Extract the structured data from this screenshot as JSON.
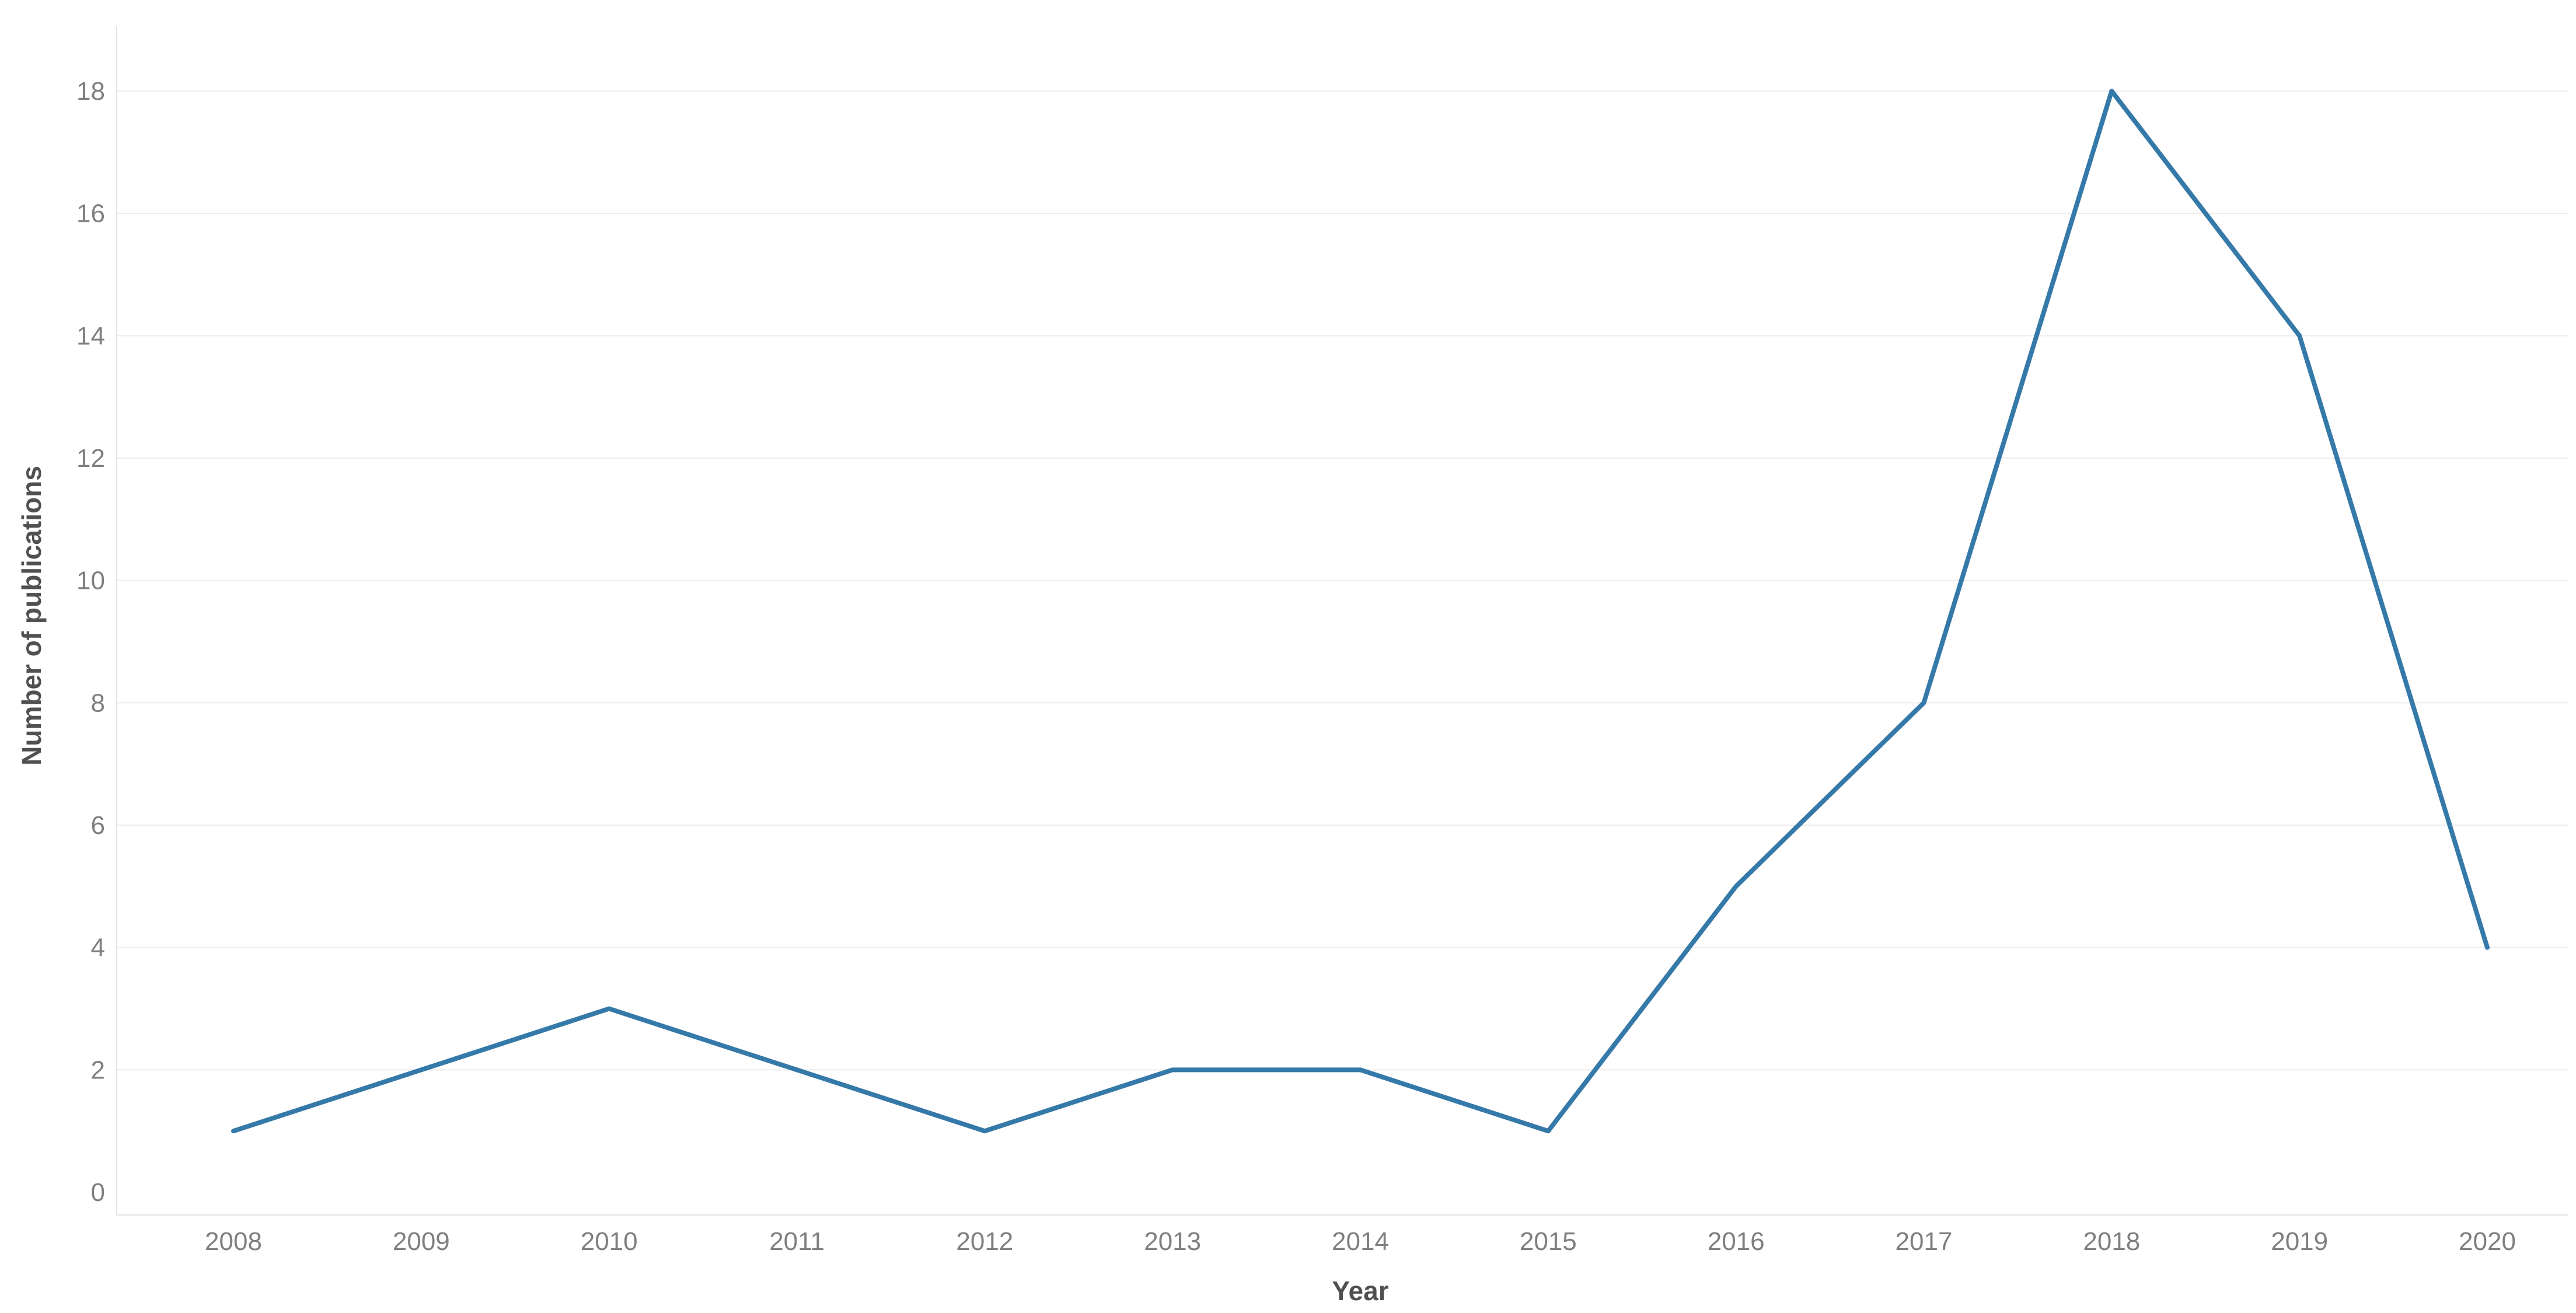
{
  "chart_data": {
    "type": "line",
    "xlabel": "Year",
    "ylabel": "Number of publications",
    "categories": [
      "2008",
      "2009",
      "2010",
      "2011",
      "2012",
      "2013",
      "2014",
      "2015",
      "2016",
      "2017",
      "2018",
      "2019",
      "2020"
    ],
    "series": [
      {
        "values": [
          1,
          2,
          3,
          2,
          1,
          2,
          2,
          1,
          5,
          8,
          18,
          14,
          4
        ]
      }
    ],
    "ylim": [
      0,
      18
    ],
    "yticks": [
      0,
      2,
      4,
      6,
      8,
      10,
      12,
      14,
      16,
      18
    ],
    "grid": "horizontal",
    "line_color": "#3579a9",
    "gridline_color": "#ececec",
    "tick_label_color": "#7f7f7f",
    "axis_title_color": "#505050"
  }
}
